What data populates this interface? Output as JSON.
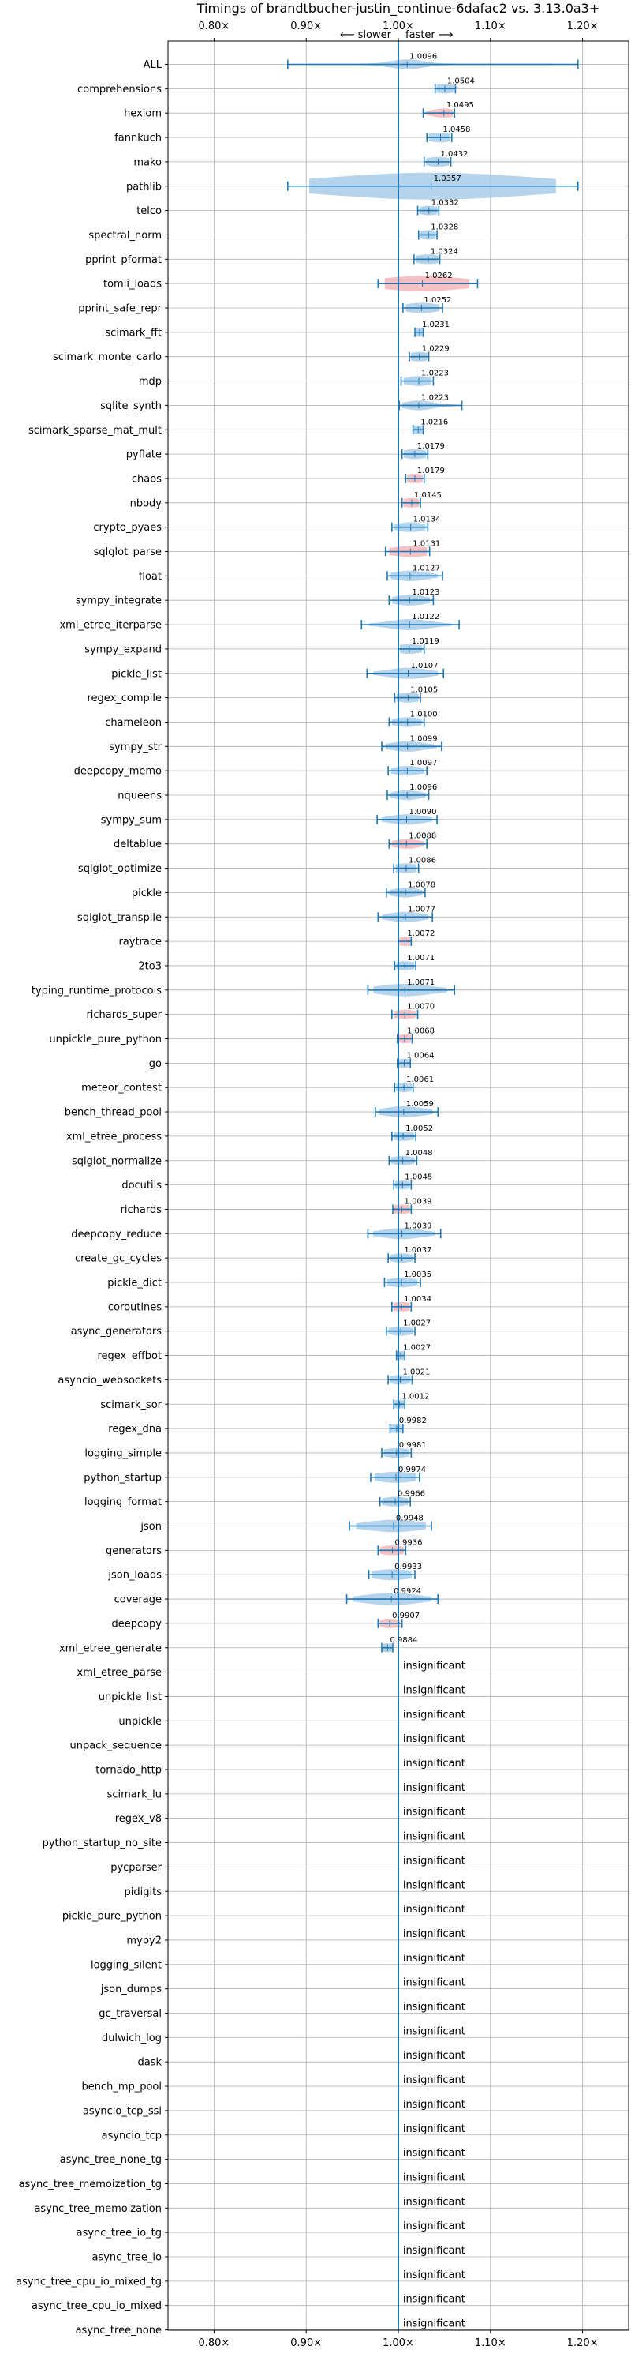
{
  "chart_data": {
    "type": "violin",
    "title": "Timings of brandtbucher-justin_continue-6dafac2 vs. 3.13.0a3+",
    "direction_label_left": "⟵ slower",
    "direction_label_right": "faster ⟶",
    "xlim": [
      0.75,
      1.25
    ],
    "x_ticks": [
      0.8,
      0.9,
      1.0,
      1.1,
      1.2
    ],
    "x_tick_labels": [
      "0.80×",
      "0.90×",
      "1.00×",
      "1.10×",
      "1.20×"
    ],
    "reference_line": 1.0,
    "grid": true,
    "colors": {
      "faster": "#a8cbe6",
      "slower": "#f4b6b8",
      "line": "#1f77b4",
      "grid": "#b0b0b0"
    },
    "benchmarks": [
      {
        "name": "ALL",
        "value": 1.0096,
        "low": 0.88,
        "high": 1.195,
        "w": 0.018,
        "color": "faster",
        "label": "1.0096"
      },
      {
        "name": "comprehensions",
        "value": 1.0504,
        "low": 1.04,
        "high": 1.062,
        "w": 0.012,
        "color": "faster",
        "label": "1.0504"
      },
      {
        "name": "hexiom",
        "value": 1.0495,
        "low": 1.027,
        "high": 1.061,
        "w": 0.012,
        "color": "slower",
        "label": "1.0495"
      },
      {
        "name": "fannkuch",
        "value": 1.0458,
        "low": 1.031,
        "high": 1.058,
        "w": 0.015,
        "color": "faster",
        "label": "1.0458"
      },
      {
        "name": "mako",
        "value": 1.0432,
        "low": 1.028,
        "high": 1.057,
        "w": 0.015,
        "color": "faster",
        "label": "1.0432"
      },
      {
        "name": "pathlib",
        "value": 1.0357,
        "low": 0.88,
        "high": 1.195,
        "w": 0.16,
        "color": "faster",
        "label": "1.0357"
      },
      {
        "name": "telco",
        "value": 1.0332,
        "low": 1.021,
        "high": 1.044,
        "w": 0.012,
        "color": "faster",
        "label": "1.0332"
      },
      {
        "name": "spectral_norm",
        "value": 1.0328,
        "low": 1.022,
        "high": 1.042,
        "w": 0.012,
        "color": "faster",
        "label": "1.0328"
      },
      {
        "name": "pprint_pformat",
        "value": 1.0324,
        "low": 1.017,
        "high": 1.045,
        "w": 0.015,
        "color": "faster",
        "label": "1.0324"
      },
      {
        "name": "tomli_loads",
        "value": 1.0262,
        "low": 0.978,
        "high": 1.086,
        "w": 0.06,
        "color": "slower",
        "label": "1.0262"
      },
      {
        "name": "pprint_safe_repr",
        "value": 1.0252,
        "low": 1.005,
        "high": 1.048,
        "w": 0.02,
        "color": "faster",
        "label": "1.0252"
      },
      {
        "name": "scimark_fft",
        "value": 1.0231,
        "low": 1.018,
        "high": 1.027,
        "w": 0.008,
        "color": "faster",
        "label": "1.0231"
      },
      {
        "name": "scimark_monte_carlo",
        "value": 1.0229,
        "low": 1.012,
        "high": 1.033,
        "w": 0.012,
        "color": "faster",
        "label": "1.0229"
      },
      {
        "name": "mdp",
        "value": 1.0223,
        "low": 1.003,
        "high": 1.038,
        "w": 0.015,
        "color": "faster",
        "label": "1.0223"
      },
      {
        "name": "sqlite_synth",
        "value": 1.0223,
        "low": 1.001,
        "high": 1.069,
        "w": 0.015,
        "color": "faster",
        "label": "1.0223"
      },
      {
        "name": "scimark_sparse_mat_mult",
        "value": 1.0216,
        "low": 1.016,
        "high": 1.027,
        "w": 0.008,
        "color": "faster",
        "label": "1.0216"
      },
      {
        "name": "pyflate",
        "value": 1.0179,
        "low": 1.004,
        "high": 1.032,
        "w": 0.015,
        "color": "faster",
        "label": "1.0179"
      },
      {
        "name": "chaos",
        "value": 1.0179,
        "low": 1.008,
        "high": 1.028,
        "w": 0.012,
        "color": "slower",
        "label": "1.0179"
      },
      {
        "name": "nbody",
        "value": 1.0145,
        "low": 1.004,
        "high": 1.024,
        "w": 0.012,
        "color": "slower",
        "label": "1.0145"
      },
      {
        "name": "crypto_pyaes",
        "value": 1.0134,
        "low": 0.993,
        "high": 1.032,
        "w": 0.015,
        "color": "faster",
        "label": "1.0134"
      },
      {
        "name": "sqlglot_parse",
        "value": 1.0131,
        "low": 0.986,
        "high": 1.034,
        "w": 0.025,
        "color": "slower",
        "label": "1.0131"
      },
      {
        "name": "float",
        "value": 1.0127,
        "low": 0.988,
        "high": 1.048,
        "w": 0.02,
        "color": "faster",
        "label": "1.0127"
      },
      {
        "name": "sympy_integrate",
        "value": 1.0123,
        "low": 0.99,
        "high": 1.038,
        "w": 0.02,
        "color": "faster",
        "label": "1.0123"
      },
      {
        "name": "xml_etree_iterparse",
        "value": 1.0122,
        "low": 0.96,
        "high": 1.066,
        "w": 0.025,
        "color": "faster",
        "label": "1.0122"
      },
      {
        "name": "sympy_expand",
        "value": 1.0119,
        "low": 1.0,
        "high": 1.028,
        "w": 0.015,
        "color": "faster",
        "label": "1.0119"
      },
      {
        "name": "pickle_list",
        "value": 1.0107,
        "low": 0.966,
        "high": 1.049,
        "w": 0.025,
        "color": "faster",
        "label": "1.0107"
      },
      {
        "name": "regex_compile",
        "value": 1.0105,
        "low": 0.996,
        "high": 1.024,
        "w": 0.015,
        "color": "faster",
        "label": "1.0105"
      },
      {
        "name": "chameleon",
        "value": 1.01,
        "low": 0.99,
        "high": 1.028,
        "w": 0.015,
        "color": "faster",
        "label": "1.0100"
      },
      {
        "name": "sympy_str",
        "value": 1.0099,
        "low": 0.982,
        "high": 1.047,
        "w": 0.02,
        "color": "faster",
        "label": "1.0099"
      },
      {
        "name": "deepcopy_memo",
        "value": 1.0097,
        "low": 0.989,
        "high": 1.031,
        "w": 0.015,
        "color": "faster",
        "label": "1.0097"
      },
      {
        "name": "nqueens",
        "value": 1.0096,
        "low": 0.988,
        "high": 1.033,
        "w": 0.015,
        "color": "faster",
        "label": "1.0096"
      },
      {
        "name": "sympy_sum",
        "value": 1.009,
        "low": 0.977,
        "high": 1.042,
        "w": 0.02,
        "color": "faster",
        "label": "1.0090"
      },
      {
        "name": "deltablue",
        "value": 1.0088,
        "low": 0.99,
        "high": 1.031,
        "w": 0.015,
        "color": "slower",
        "label": "1.0088"
      },
      {
        "name": "sqlglot_optimize",
        "value": 1.0086,
        "low": 0.995,
        "high": 1.022,
        "w": 0.015,
        "color": "faster",
        "label": "1.0086"
      },
      {
        "name": "pickle",
        "value": 1.0078,
        "low": 0.987,
        "high": 1.029,
        "w": 0.015,
        "color": "faster",
        "label": "1.0078"
      },
      {
        "name": "sqlglot_transpile",
        "value": 1.0077,
        "low": 0.978,
        "high": 1.037,
        "w": 0.02,
        "color": "faster",
        "label": "1.0077"
      },
      {
        "name": "raytrace",
        "value": 1.0072,
        "low": 1.0,
        "high": 1.014,
        "w": 0.008,
        "color": "slower",
        "label": "1.0072"
      },
      {
        "name": "2to3",
        "value": 1.0071,
        "low": 0.996,
        "high": 1.019,
        "w": 0.01,
        "color": "faster",
        "label": "1.0071"
      },
      {
        "name": "typing_runtime_protocols",
        "value": 1.0071,
        "low": 0.967,
        "high": 1.061,
        "w": 0.035,
        "color": "faster",
        "label": "1.0071"
      },
      {
        "name": "richards_super",
        "value": 1.007,
        "low": 0.993,
        "high": 1.021,
        "w": 0.012,
        "color": "slower",
        "label": "1.0070"
      },
      {
        "name": "unpickle_pure_python",
        "value": 1.0068,
        "low": 0.999,
        "high": 1.015,
        "w": 0.008,
        "color": "slower",
        "label": "1.0068"
      },
      {
        "name": "go",
        "value": 1.0064,
        "low": 0.999,
        "high": 1.013,
        "w": 0.008,
        "color": "faster",
        "label": "1.0064"
      },
      {
        "name": "meteor_contest",
        "value": 1.0061,
        "low": 0.996,
        "high": 1.016,
        "w": 0.01,
        "color": "faster",
        "label": "1.0061"
      },
      {
        "name": "bench_thread_pool",
        "value": 1.0059,
        "low": 0.975,
        "high": 1.043,
        "w": 0.025,
        "color": "faster",
        "label": "1.0059"
      },
      {
        "name": "xml_etree_process",
        "value": 1.0052,
        "low": 0.993,
        "high": 1.019,
        "w": 0.012,
        "color": "faster",
        "label": "1.0052"
      },
      {
        "name": "sqlglot_normalize",
        "value": 1.0048,
        "low": 0.99,
        "high": 1.02,
        "w": 0.012,
        "color": "faster",
        "label": "1.0048"
      },
      {
        "name": "docutils",
        "value": 1.0045,
        "low": 0.995,
        "high": 1.014,
        "w": 0.008,
        "color": "faster",
        "label": "1.0045"
      },
      {
        "name": "richards",
        "value": 1.0039,
        "low": 0.994,
        "high": 1.014,
        "w": 0.012,
        "color": "slower",
        "label": "1.0039"
      },
      {
        "name": "deepcopy_reduce",
        "value": 1.0039,
        "low": 0.967,
        "high": 1.046,
        "w": 0.025,
        "color": "faster",
        "label": "1.0039"
      },
      {
        "name": "create_gc_cycles",
        "value": 1.0037,
        "low": 0.989,
        "high": 1.018,
        "w": 0.012,
        "color": "faster",
        "label": "1.0037"
      },
      {
        "name": "pickle_dict",
        "value": 1.0035,
        "low": 0.985,
        "high": 1.024,
        "w": 0.015,
        "color": "faster",
        "label": "1.0035"
      },
      {
        "name": "coroutines",
        "value": 1.0034,
        "low": 0.993,
        "high": 1.014,
        "w": 0.012,
        "color": "slower",
        "label": "1.0034"
      },
      {
        "name": "async_generators",
        "value": 1.0027,
        "low": 0.987,
        "high": 1.018,
        "w": 0.012,
        "color": "faster",
        "label": "1.0027"
      },
      {
        "name": "regex_effbot",
        "value": 1.0027,
        "low": 0.998,
        "high": 1.007,
        "w": 0.008,
        "color": "faster",
        "label": "1.0027"
      },
      {
        "name": "asyncio_websockets",
        "value": 1.0021,
        "low": 0.989,
        "high": 1.015,
        "w": 0.012,
        "color": "faster",
        "label": "1.0021"
      },
      {
        "name": "scimark_sor",
        "value": 1.0012,
        "low": 0.995,
        "high": 1.007,
        "w": 0.008,
        "color": "faster",
        "label": "1.0012"
      },
      {
        "name": "regex_dna",
        "value": 0.9982,
        "low": 0.991,
        "high": 1.005,
        "w": 0.01,
        "color": "faster",
        "label": "0.9982"
      },
      {
        "name": "logging_simple",
        "value": 0.9981,
        "low": 0.982,
        "high": 1.014,
        "w": 0.015,
        "color": "faster",
        "label": "0.9981"
      },
      {
        "name": "python_startup",
        "value": 0.9974,
        "low": 0.97,
        "high": 1.023,
        "w": 0.025,
        "color": "faster",
        "label": "0.9974"
      },
      {
        "name": "logging_format",
        "value": 0.9966,
        "low": 0.98,
        "high": 1.013,
        "w": 0.015,
        "color": "faster",
        "label": "0.9966"
      },
      {
        "name": "json",
        "value": 0.9948,
        "low": 0.947,
        "high": 1.036,
        "w": 0.035,
        "color": "faster",
        "label": "0.9948"
      },
      {
        "name": "generators",
        "value": 0.9936,
        "low": 0.978,
        "high": 1.008,
        "w": 0.015,
        "color": "slower",
        "label": "0.9936"
      },
      {
        "name": "json_loads",
        "value": 0.9933,
        "low": 0.968,
        "high": 1.018,
        "w": 0.025,
        "color": "faster",
        "label": "0.9933"
      },
      {
        "name": "coverage",
        "value": 0.9924,
        "low": 0.944,
        "high": 1.043,
        "w": 0.035,
        "color": "faster",
        "label": "0.9924"
      },
      {
        "name": "deepcopy",
        "value": 0.9907,
        "low": 0.978,
        "high": 1.004,
        "w": 0.012,
        "color": "slower",
        "label": "0.9907"
      },
      {
        "name": "xml_etree_generate",
        "value": 0.9884,
        "low": 0.982,
        "high": 0.994,
        "w": 0.008,
        "color": "faster",
        "label": "0.9884"
      },
      {
        "name": "xml_etree_parse",
        "insignificant": true
      },
      {
        "name": "unpickle_list",
        "insignificant": true
      },
      {
        "name": "unpickle",
        "insignificant": true
      },
      {
        "name": "unpack_sequence",
        "insignificant": true
      },
      {
        "name": "tornado_http",
        "insignificant": true
      },
      {
        "name": "scimark_lu",
        "insignificant": true
      },
      {
        "name": "regex_v8",
        "insignificant": true
      },
      {
        "name": "python_startup_no_site",
        "insignificant": true
      },
      {
        "name": "pycparser",
        "insignificant": true
      },
      {
        "name": "pidigits",
        "insignificant": true
      },
      {
        "name": "pickle_pure_python",
        "insignificant": true
      },
      {
        "name": "mypy2",
        "insignificant": true
      },
      {
        "name": "logging_silent",
        "insignificant": true
      },
      {
        "name": "json_dumps",
        "insignificant": true
      },
      {
        "name": "gc_traversal",
        "insignificant": true
      },
      {
        "name": "dulwich_log",
        "insignificant": true
      },
      {
        "name": "dask",
        "insignificant": true
      },
      {
        "name": "bench_mp_pool",
        "insignificant": true
      },
      {
        "name": "asyncio_tcp_ssl",
        "insignificant": true
      },
      {
        "name": "asyncio_tcp",
        "insignificant": true
      },
      {
        "name": "async_tree_none_tg",
        "insignificant": true
      },
      {
        "name": "async_tree_memoization_tg",
        "insignificant": true
      },
      {
        "name": "async_tree_memoization",
        "insignificant": true
      },
      {
        "name": "async_tree_io_tg",
        "insignificant": true
      },
      {
        "name": "async_tree_io",
        "insignificant": true
      },
      {
        "name": "async_tree_cpu_io_mixed_tg",
        "insignificant": true
      },
      {
        "name": "async_tree_cpu_io_mixed",
        "insignificant": true
      },
      {
        "name": "async_tree_none",
        "insignificant": true
      }
    ],
    "insignificant_label": "insignificant"
  }
}
